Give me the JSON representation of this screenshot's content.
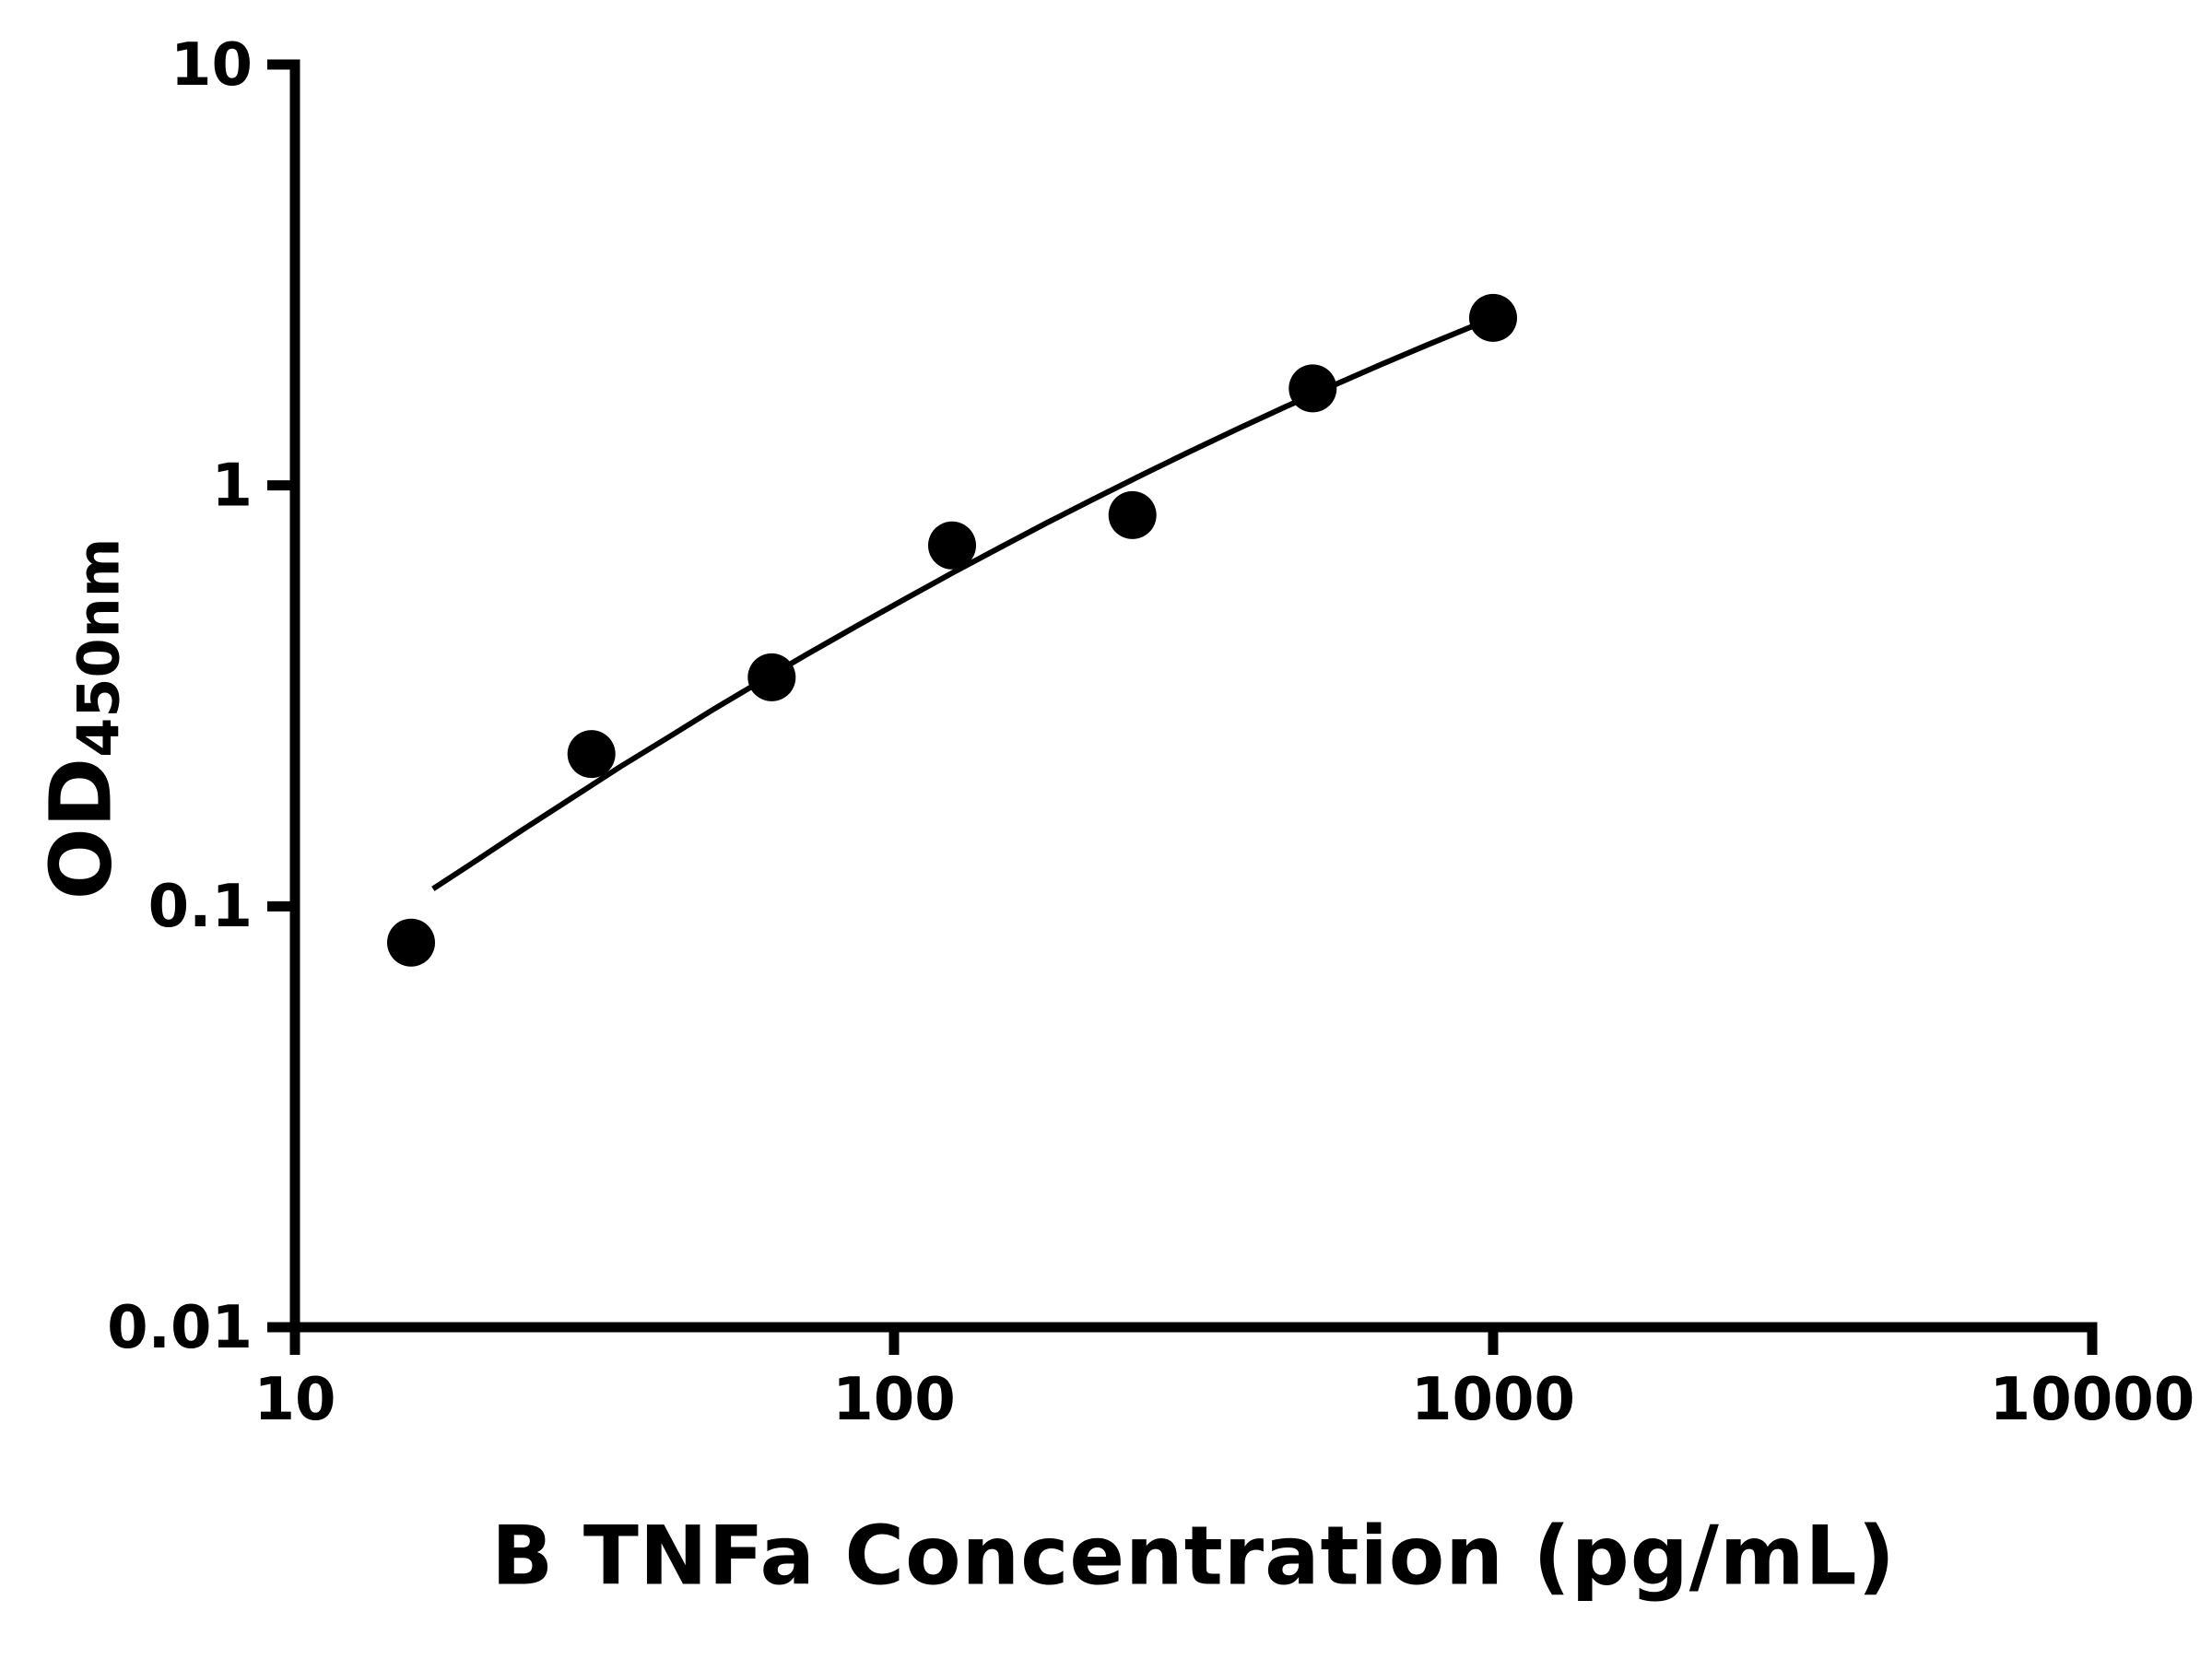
{
  "figure": {
    "background_color": "#ffffff",
    "axis_color": "#000000",
    "text_color": "#000000"
  },
  "chart_data": {
    "type": "scatter",
    "title": "",
    "xlabel": "B TNFa Concentration (pg/mL)",
    "ylabel_main": "OD",
    "ylabel_sub": "450nm",
    "xscale": "log",
    "yscale": "log",
    "xlim": [
      10,
      10000
    ],
    "ylim": [
      0.01,
      10
    ],
    "grid": false,
    "legend": false,
    "x_ticks": {
      "values": [
        10,
        100,
        1000,
        10000
      ],
      "labels": [
        "10",
        "100",
        "1000",
        "10000"
      ]
    },
    "y_ticks": {
      "values": [
        10,
        1,
        0.1,
        0.01
      ],
      "labels": [
        "10",
        "1",
        "0.1",
        "0.01"
      ]
    },
    "series": [
      {
        "name": "standard-curve-points",
        "type": "scatter",
        "marker": "circle",
        "color": "#000000",
        "x": [
          15.625,
          31.25,
          62.5,
          125,
          250,
          500,
          1000
        ],
        "y": [
          0.082,
          0.23,
          0.35,
          0.72,
          0.85,
          1.7,
          2.5
        ]
      },
      {
        "name": "fit-curve",
        "type": "line",
        "color": "#000000",
        "x": [
          17,
          20,
          24,
          29,
          35,
          42,
          50,
          60,
          72,
          87,
          105,
          125,
          150,
          180,
          215,
          260,
          310,
          375,
          450,
          540,
          650,
          780,
          1000
        ],
        "y": [
          0.11,
          0.128,
          0.152,
          0.181,
          0.215,
          0.252,
          0.294,
          0.343,
          0.399,
          0.465,
          0.54,
          0.619,
          0.711,
          0.815,
          0.927,
          1.061,
          1.199,
          1.363,
          1.537,
          1.726,
          1.937,
          2.163,
          2.5
        ]
      }
    ]
  }
}
